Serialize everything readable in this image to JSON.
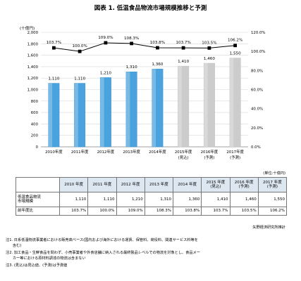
{
  "title": "図表 1. 低温食品物流市場規模推移と予測",
  "chart_data": {
    "type": "bar",
    "unit_label": "(十億円)",
    "categories": [
      "2010年度",
      "2011年度",
      "2012年度",
      "2013年度",
      "2014年度",
      "2015年度",
      "2016年度",
      "2017年度"
    ],
    "category_notes": [
      "",
      "",
      "",
      "",
      "",
      "(見込)",
      "(予測)",
      "(予測)"
    ],
    "series": [
      {
        "values": [
          1110,
          1110,
          1210,
          1310,
          1360,
          1410,
          1460,
          1550
        ],
        "color": "#4aa3de"
      },
      {
        "type": "line",
        "axis": "right",
        "values": [
          103.7,
          100.0,
          109.0,
          108.3,
          103.8,
          103.7,
          103.5,
          106.2
        ],
        "color": "#000000"
      }
    ],
    "bar_colors": [
      "#4aa3de",
      "#4aa3de",
      "#4aa3de",
      "#4aa3de",
      "#4aa3de",
      "#cccccc",
      "#cccccc",
      "#cccccc"
    ],
    "ylim": [
      0,
      2000
    ],
    "yticks": [
      "0",
      "200",
      "400",
      "600",
      "800",
      "1,000",
      "1,200",
      "1,400",
      "1,600",
      "1,800",
      "2,000"
    ],
    "y2lim": [
      0,
      120
    ],
    "y2ticks": [
      "0.0%",
      "20.0%",
      "40.0%",
      "60.0%",
      "80.0%",
      "100.0%",
      "120.0%"
    ],
    "bar_labels": [
      "1,110",
      "1,110",
      "1,210",
      "1,310",
      "1,360",
      "1,410",
      "1,460",
      "1,550"
    ],
    "line_labels": [
      "103.7%",
      "100.0%",
      "109.0%",
      "108.3%",
      "103.8%",
      "103.7%",
      "103.5%",
      "106.2%"
    ],
    "grid": true
  },
  "table": {
    "unit": "(単位:十億円)",
    "headers": [
      [
        "2010 年度"
      ],
      [
        "2011 年度"
      ],
      [
        "2012 年度"
      ],
      [
        "2013 年度"
      ],
      [
        "2014 年度"
      ],
      [
        "2015 年度",
        "(見込)"
      ],
      [
        "2016 年度",
        "(予測)"
      ],
      [
        "2017 年度",
        "(予測)"
      ]
    ],
    "rows": [
      {
        "label": [
          "低温食品物流",
          "市場規模"
        ],
        "cells": [
          "1,110",
          "1,110",
          "1,210",
          "1,310",
          "1,360",
          "1,410",
          "1,460",
          "1,550"
        ]
      },
      {
        "label": [
          "前年度比"
        ],
        "cells": [
          "103.7%",
          "100.0%",
          "109.0%",
          "108.3%",
          "103.8%",
          "103.7%",
          "103.5%",
          "106.2%"
        ]
      }
    ]
  },
  "source": "矢野経済研究所推計",
  "notes": [
    "注1. 日系低温物流事業者における販売高ベース(国内および海外における運賃、保管料、荷役料、関連サービス料等を",
    "      含む)",
    "注2. 加工食品・生鮮食品を問わず、小売事業者や外食店舗に納入される最終製品レベルでの物流を対象とし、食品メー",
    "      カー等における原材料調達の物流は含まない",
    "注3. (見込)は見込値、(予測)は予測値"
  ]
}
